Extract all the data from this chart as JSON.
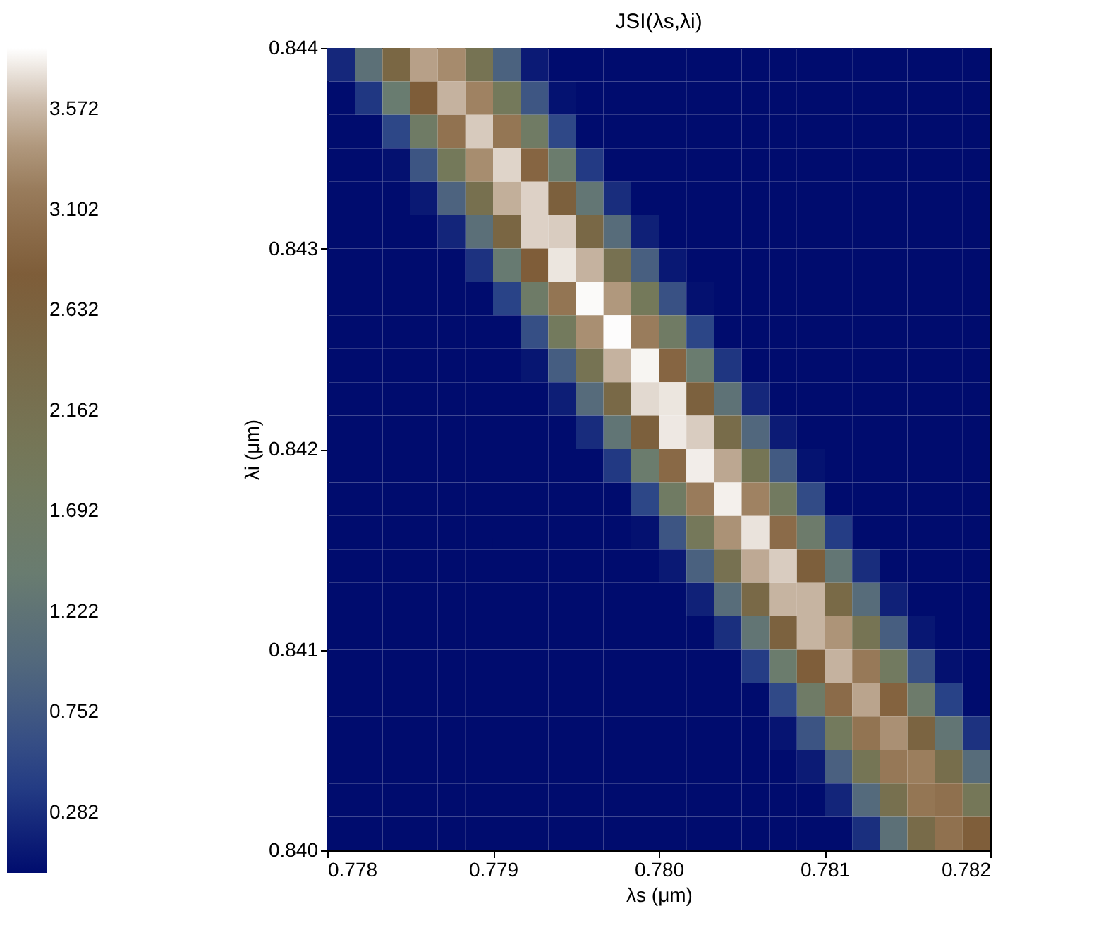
{
  "chart_data": {
    "type": "heatmap",
    "title": "JSI(λs,λi)",
    "xlabel": "λs (μm)",
    "ylabel": "λi (μm)",
    "xlim": [
      0.778,
      0.782
    ],
    "ylim": [
      0.84,
      0.844
    ],
    "xticks": [
      {
        "value": 0.778,
        "label": "0.778"
      },
      {
        "value": 0.779,
        "label": "0.779"
      },
      {
        "value": 0.78,
        "label": "0.780"
      },
      {
        "value": 0.781,
        "label": "0.781"
      },
      {
        "value": 0.782,
        "label": "0.782"
      }
    ],
    "yticks": [
      {
        "value": 0.84,
        "label": "0.840"
      },
      0.841,
      0.842,
      0.843,
      0.844
    ],
    "clim": [
      0,
      3.86
    ],
    "cticks": [
      0.282,
      0.752,
      1.222,
      1.692,
      2.162,
      2.632,
      3.102,
      3.572
    ],
    "cells": [
      [
        0.23,
        1.16,
        2.5,
        3.45,
        3.33,
        2.11,
        0.88,
        0.12,
        0,
        0,
        0,
        0,
        0,
        0,
        0,
        0,
        0,
        0,
        0,
        0,
        0,
        0,
        0,
        0
      ],
      [
        0,
        0.36,
        1.4,
        2.8,
        3.55,
        3.27,
        1.9,
        0.72,
        0.05,
        0,
        0,
        0,
        0,
        0,
        0,
        0,
        0,
        0,
        0,
        0,
        0,
        0,
        0,
        0
      ],
      [
        0,
        0,
        0.51,
        1.66,
        3.08,
        3.65,
        3.12,
        1.7,
        0.53,
        0,
        0,
        0,
        0,
        0,
        0,
        0,
        0,
        0,
        0,
        0,
        0,
        0,
        0,
        0
      ],
      [
        0,
        0,
        0.04,
        0.7,
        1.93,
        3.34,
        3.69,
        2.93,
        1.48,
        0.39,
        0,
        0,
        0,
        0,
        0,
        0,
        0,
        0,
        0,
        0,
        0,
        0,
        0,
        0
      ],
      [
        0,
        0,
        0,
        0.11,
        0.9,
        2.21,
        3.53,
        3.68,
        2.7,
        1.28,
        0.28,
        0,
        0,
        0,
        0,
        0,
        0,
        0,
        0,
        0,
        0,
        0,
        0,
        0
      ],
      [
        0,
        0,
        0,
        0,
        0.21,
        1.14,
        2.54,
        3.68,
        3.66,
        2.46,
        1.06,
        0.17,
        0,
        0,
        0,
        0,
        0,
        0,
        0,
        0,
        0,
        0,
        0,
        0
      ],
      [
        0,
        0,
        0,
        0,
        0,
        0.32,
        1.36,
        2.83,
        3.76,
        3.55,
        2.18,
        0.84,
        0.1,
        0,
        0,
        0,
        0,
        0,
        0,
        0,
        0,
        0,
        0,
        0
      ],
      [
        0,
        0,
        0,
        0,
        0,
        0,
        0.46,
        1.61,
        3.11,
        3.84,
        3.4,
        1.92,
        0.65,
        0.04,
        0,
        0,
        0,
        0,
        0,
        0,
        0,
        0,
        0,
        0
      ],
      [
        0,
        0,
        0,
        0,
        0,
        0,
        0,
        0.62,
        1.85,
        3.35,
        3.85,
        3.2,
        1.69,
        0.5,
        0,
        0,
        0,
        0,
        0,
        0,
        0,
        0,
        0,
        0
      ],
      [
        0,
        0,
        0,
        0,
        0,
        0,
        0,
        0.08,
        0.81,
        2.12,
        3.55,
        3.82,
        2.93,
        1.43,
        0.35,
        0,
        0,
        0,
        0,
        0,
        0,
        0,
        0,
        0
      ],
      [
        0,
        0,
        0,
        0,
        0,
        0,
        0,
        0,
        0.15,
        1.04,
        2.43,
        3.71,
        3.76,
        2.66,
        1.2,
        0.23,
        0,
        0,
        0,
        0,
        0,
        0,
        0,
        0
      ],
      [
        0,
        0,
        0,
        0,
        0,
        0,
        0,
        0,
        0,
        0.27,
        1.25,
        2.7,
        3.77,
        3.66,
        2.35,
        0.96,
        0.13,
        0,
        0,
        0,
        0,
        0,
        0,
        0
      ],
      [
        0,
        0,
        0,
        0,
        0,
        0,
        0,
        0,
        0,
        0,
        0.38,
        1.47,
        2.97,
        3.79,
        3.49,
        2.05,
        0.77,
        0.06,
        0,
        0,
        0,
        0,
        0,
        0
      ],
      [
        0,
        0,
        0,
        0,
        0,
        0,
        0,
        0,
        0,
        0,
        0,
        0.51,
        1.71,
        3.19,
        3.8,
        3.27,
        1.79,
        0.57,
        0,
        0,
        0,
        0,
        0,
        0
      ],
      [
        0,
        0,
        0,
        0,
        0,
        0,
        0,
        0,
        0,
        0,
        0,
        0.04,
        0.7,
        1.94,
        3.37,
        3.75,
        3.0,
        1.53,
        0.41,
        0,
        0,
        0,
        0,
        0
      ],
      [
        0,
        0,
        0,
        0,
        0,
        0,
        0,
        0,
        0,
        0,
        0,
        0,
        0.11,
        0.87,
        2.18,
        3.5,
        3.66,
        2.72,
        1.28,
        0.28,
        0,
        0,
        0,
        0
      ],
      [
        0,
        0,
        0,
        0,
        0,
        0,
        0,
        0,
        0,
        0,
        0,
        0,
        0,
        0.18,
        1.08,
        2.44,
        3.56,
        3.56,
        2.42,
        1.06,
        0.18,
        0,
        0,
        0
      ],
      [
        0,
        0,
        0,
        0,
        0,
        0,
        0,
        0,
        0,
        0,
        0,
        0,
        0,
        0,
        0.29,
        1.26,
        2.65,
        3.56,
        3.38,
        2.08,
        0.83,
        0.09,
        0,
        0
      ],
      [
        0,
        0,
        0,
        0,
        0,
        0,
        0,
        0,
        0,
        0,
        0,
        0,
        0,
        0,
        0,
        0.41,
        1.47,
        2.84,
        3.55,
        3.16,
        1.79,
        0.64,
        0.04,
        0
      ],
      [
        0,
        0,
        0,
        0,
        0,
        0,
        0,
        0,
        0,
        0,
        0,
        0,
        0,
        0,
        0,
        0,
        0.54,
        1.65,
        3.0,
        3.47,
        2.9,
        1.53,
        0.45,
        0
      ],
      [
        0,
        0,
        0,
        0,
        0,
        0,
        0,
        0,
        0,
        0,
        0,
        0,
        0,
        0,
        0,
        0,
        0.07,
        0.69,
        1.85,
        3.1,
        3.36,
        2.59,
        1.27,
        0.32
      ],
      [
        0,
        0,
        0,
        0,
        0,
        0,
        0,
        0,
        0,
        0,
        0,
        0,
        0,
        0,
        0,
        0,
        0,
        0.13,
        0.86,
        2.05,
        3.15,
        3.22,
        2.29,
        1.06
      ],
      [
        0,
        0,
        0,
        0,
        0,
        0,
        0,
        0,
        0,
        0,
        0,
        0,
        0,
        0,
        0,
        0,
        0,
        0,
        0.21,
        1.02,
        2.22,
        3.12,
        3.06,
        1.98
      ],
      [
        0,
        0,
        0,
        0,
        0,
        0,
        0,
        0,
        0,
        0,
        0,
        0,
        0,
        0,
        0,
        0,
        0,
        0,
        0,
        0.29,
        1.16,
        2.37,
        3.07,
        2.84
      ]
    ]
  }
}
